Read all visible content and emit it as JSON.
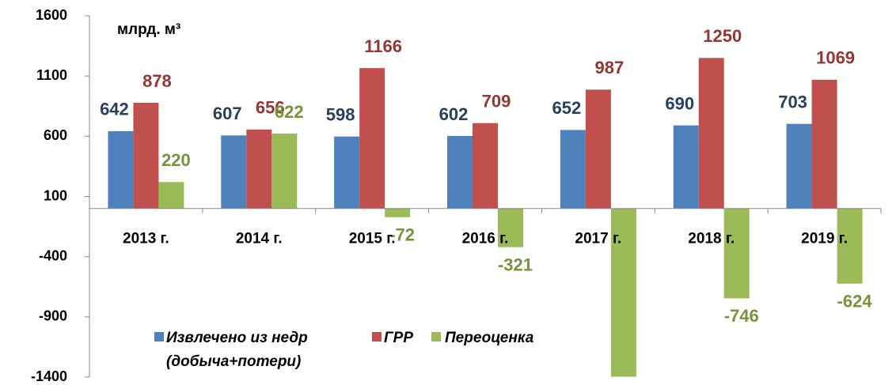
{
  "chart_data": {
    "type": "bar",
    "unit_label": "млрд. м³",
    "categories": [
      "2013 г.",
      "2014 г.",
      "2015 г.",
      "2016 г.",
      "2017 г.",
      "2018 г.",
      "2019 г."
    ],
    "series": [
      {
        "name": "Извлечено из недр (добыча+потери)",
        "color": "#4f81bd",
        "label_color": "#254061",
        "values": [
          642,
          607,
          598,
          602,
          652,
          690,
          703
        ]
      },
      {
        "name": "ГРР",
        "color": "#c0504d",
        "label_color": "#943634",
        "values": [
          878,
          656,
          1166,
          709,
          987,
          1250,
          1069
        ]
      },
      {
        "name": "Переоценка",
        "color": "#9bbb59",
        "label_color": "#77933c",
        "values": [
          220,
          622,
          -72,
          -321,
          -1397,
          -746,
          -624
        ]
      }
    ],
    "ylim": [
      -1400,
      1600
    ],
    "yticks": [
      -1400,
      -900,
      -400,
      100,
      600,
      1100,
      1600
    ],
    "grid": false,
    "legend": "bottom-left"
  }
}
